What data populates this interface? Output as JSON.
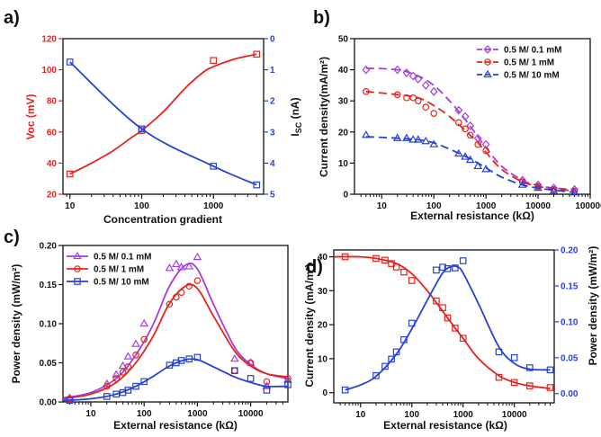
{
  "figure": {
    "panel_labels": [
      "a)",
      "b)",
      "c)",
      "d)"
    ]
  },
  "chart_data": [
    {
      "panel": "a)",
      "type": "line",
      "xlabel": "Concentration gradient",
      "ylabel_left": "Voc (mV)",
      "ylabel_right_main": "I",
      "ylabel_right_sub": "SC",
      "ylabel_right_unit": " (nA)",
      "xscale": "log",
      "xlim": [
        8,
        5000
      ],
      "xticks": [
        10,
        100,
        1000
      ],
      "xticklabels": [
        "10",
        "100",
        "1000"
      ],
      "ylim_left": [
        20,
        120
      ],
      "yticks_left": [
        20,
        40,
        60,
        80,
        100,
        120
      ],
      "ylim_right": [
        5,
        0
      ],
      "yticks_right": [
        0,
        1,
        2,
        3,
        4,
        5
      ],
      "left_axis_color": "#e8221b",
      "right_axis_color": "#2440d8",
      "series": [
        {
          "axis": "left",
          "color": "#e8221b",
          "marker": "square",
          "x": [
            10,
            100,
            1000,
            4000
          ],
          "y": [
            33,
            61,
            106,
            110
          ],
          "fit_x": [
            10,
            20,
            40,
            70,
            100,
            200,
            400,
            700,
            1000,
            2000,
            4000
          ],
          "fit_y": [
            33,
            40,
            48,
            56,
            61,
            73,
            88,
            98,
            102,
            107,
            110
          ]
        },
        {
          "axis": "right",
          "color": "#2440d8",
          "marker": "square",
          "x": [
            10,
            100,
            1000,
            4000
          ],
          "y": [
            0.75,
            2.9,
            4.1,
            4.7
          ],
          "fit_x": [
            10,
            100,
            1000,
            4000
          ],
          "fit_y": [
            0.75,
            2.9,
            4.1,
            4.7
          ]
        }
      ]
    },
    {
      "panel": "b)",
      "type": "scatter",
      "xlabel_main": "External resistance (k",
      "xlabel_symbol": "Ω",
      "xlabel_end": ")",
      "ylabel": "Current density(mA/m²)",
      "xscale": "log",
      "xlim": [
        3,
        100000
      ],
      "xticks": [
        10,
        100,
        1000,
        10000,
        100000
      ],
      "xticklabels": [
        "10",
        "100",
        "1000",
        "10000",
        "100000"
      ],
      "ylim": [
        0,
        50
      ],
      "yticks": [
        0,
        10,
        20,
        30,
        40,
        50
      ],
      "legend": "top-right",
      "series": [
        {
          "name": "0.5 M/ 0.1 mM",
          "color": "#a43de0",
          "marker": "diamond",
          "x": [
            5,
            20,
            30,
            40,
            50,
            70,
            100,
            300,
            400,
            500,
            700,
            1000,
            5000,
            10000,
            20000,
            50000
          ],
          "y": [
            40,
            40,
            39,
            38,
            37,
            35,
            33,
            27,
            25,
            22,
            18,
            16,
            4.5,
            3,
            2,
            1.5
          ],
          "fit_x": [
            5,
            20,
            50,
            100,
            200,
            400,
            700,
            1000,
            2000,
            5000,
            10000,
            20000,
            50000
          ],
          "fit_y": [
            40.5,
            40,
            38,
            35,
            30,
            24,
            18.5,
            15,
            9,
            4.5,
            2.8,
            2,
            1.5
          ]
        },
        {
          "name": "0.5 M/ 1 mM",
          "color": "#e8221b",
          "marker": "circle",
          "x": [
            5,
            20,
            30,
            40,
            50,
            70,
            100,
            300,
            400,
            500,
            700,
            1000,
            5000,
            10000,
            20000,
            50000
          ],
          "y": [
            33,
            32,
            31,
            31,
            30,
            28,
            26,
            23,
            21,
            19,
            16,
            14,
            4,
            2.5,
            1.5,
            1
          ],
          "fit_x": [
            5,
            20,
            50,
            100,
            200,
            400,
            700,
            1000,
            2000,
            5000,
            10000,
            20000,
            50000
          ],
          "fit_y": [
            33,
            32,
            31,
            28.5,
            25,
            20.5,
            16.5,
            13.5,
            8,
            4,
            2.5,
            1.8,
            1
          ]
        },
        {
          "name": "0.5 M/ 10 mM",
          "color": "#2440d8",
          "marker": "triangle",
          "x": [
            5,
            20,
            30,
            40,
            50,
            70,
            100,
            300,
            400,
            500,
            700,
            1000,
            5000,
            10000,
            20000,
            50000
          ],
          "y": [
            19,
            18,
            18,
            17.5,
            17.5,
            17,
            16,
            13,
            12,
            11,
            9,
            8,
            3,
            2,
            1,
            0.5
          ],
          "fit_x": [
            5,
            20,
            50,
            100,
            200,
            400,
            700,
            1000,
            2000,
            5000,
            10000,
            20000,
            50000
          ],
          "fit_y": [
            18.5,
            18,
            17.5,
            16.5,
            14.5,
            12.2,
            10,
            8.5,
            5.5,
            3,
            2,
            1.3,
            0.6
          ]
        }
      ]
    },
    {
      "panel": "c)",
      "type": "scatter",
      "xlabel_main": "External resistance (k",
      "xlabel_symbol": "Ω",
      "xlabel_end": ")",
      "ylabel": "Power density (mW/m²)",
      "xscale": "log",
      "xlim": [
        3,
        50000
      ],
      "xticks": [
        10,
        100,
        1000,
        10000
      ],
      "xticklabels": [
        "10",
        "100",
        "1000",
        "10000"
      ],
      "ylim": [
        0,
        0.2
      ],
      "yticks": [
        0,
        0.05,
        0.1,
        0.15,
        0.2
      ],
      "yticklabels": [
        "0.00",
        "0.05",
        "0.10",
        "0.15",
        "0.20"
      ],
      "legend": "top-left",
      "series": [
        {
          "name": "0.5 M/ 0.1 mM",
          "color": "#a43de0",
          "marker": "triangle",
          "x": [
            4,
            20,
            30,
            40,
            50,
            70,
            100,
            300,
            400,
            500,
            700,
            1000,
            5000,
            10000,
            20000,
            50000
          ],
          "y": [
            0.005,
            0.023,
            0.035,
            0.046,
            0.058,
            0.074,
            0.1,
            0.171,
            0.176,
            0.172,
            0.173,
            0.185,
            0.055,
            0.05,
            0.02,
            0.028
          ],
          "fit_x": [
            3,
            10,
            30,
            70,
            150,
            300,
            600,
            1000,
            2000,
            5000,
            10000,
            20000,
            50000
          ],
          "fit_y": [
            0.005,
            0.012,
            0.03,
            0.06,
            0.1,
            0.148,
            0.175,
            0.17,
            0.125,
            0.07,
            0.048,
            0.036,
            0.03
          ]
        },
        {
          "name": "0.5 M/ 1 mM",
          "color": "#e8221b",
          "marker": "circle",
          "x": [
            4,
            20,
            30,
            40,
            50,
            70,
            100,
            300,
            400,
            500,
            700,
            1000,
            5000,
            10000,
            20000,
            50000
          ],
          "y": [
            0.004,
            0.02,
            0.03,
            0.038,
            0.045,
            0.06,
            0.08,
            0.125,
            0.134,
            0.14,
            0.148,
            0.155,
            0.04,
            0.05,
            0.026,
            0.03
          ],
          "fit_x": [
            3,
            10,
            30,
            70,
            150,
            300,
            600,
            1000,
            2000,
            5000,
            10000,
            20000,
            50000
          ],
          "fit_y": [
            0.004,
            0.01,
            0.025,
            0.05,
            0.085,
            0.126,
            0.148,
            0.145,
            0.11,
            0.065,
            0.046,
            0.036,
            0.032
          ]
        },
        {
          "name": "0.5 M/ 10 mM",
          "color": "#2440d8",
          "marker": "square",
          "x": [
            4,
            20,
            30,
            40,
            50,
            70,
            100,
            300,
            400,
            500,
            700,
            1000,
            5000,
            10000,
            20000,
            50000
          ],
          "y": [
            0.002,
            0.007,
            0.01,
            0.012,
            0.015,
            0.02,
            0.026,
            0.047,
            0.05,
            0.053,
            0.055,
            0.057,
            0.04,
            0.03,
            0.015,
            0.022
          ],
          "fit_x": [
            3,
            10,
            30,
            70,
            150,
            300,
            600,
            1000,
            2000,
            5000,
            10000,
            20000,
            50000
          ],
          "fit_y": [
            0.002,
            0.004,
            0.01,
            0.02,
            0.033,
            0.046,
            0.054,
            0.054,
            0.045,
            0.032,
            0.025,
            0.02,
            0.02
          ]
        }
      ]
    },
    {
      "panel": "d)",
      "type": "line",
      "xlabel_main": "External resistance (k",
      "xlabel_symbol": "Ω",
      "xlabel_end": ")",
      "ylabel_left": "Current density (mA/m²)",
      "ylabel_right": "Power density (mW/m²)",
      "xscale": "log",
      "xlim": [
        3,
        60000
      ],
      "xticks": [
        10,
        100,
        1000,
        10000
      ],
      "xticklabels": [
        "10",
        "100",
        "1000",
        "10000"
      ],
      "ylim_left": [
        -3,
        42
      ],
      "yticks_left": [
        0,
        10,
        20,
        30,
        40
      ],
      "ylim_right": [
        -0.0129,
        0.2
      ],
      "yticks_right": [
        0,
        0.05,
        0.1,
        0.15,
        0.2
      ],
      "yticklabels_right": [
        "0.00",
        "0.05",
        "0.10",
        "0.15",
        "0.20"
      ],
      "left_axis_color": "#111111",
      "right_axis_color": "#2440d8",
      "series": [
        {
          "axis": "left",
          "color": "#e8221b",
          "marker": "square",
          "x": [
            5,
            20,
            30,
            40,
            50,
            70,
            100,
            300,
            400,
            500,
            700,
            1000,
            5000,
            10000,
            20000,
            50000
          ],
          "y": [
            40,
            39.5,
            39,
            38,
            37,
            35.5,
            33,
            27,
            25,
            22,
            19,
            16,
            4.5,
            3,
            2,
            1.5
          ],
          "fit_x": [
            3,
            10,
            20,
            50,
            100,
            200,
            400,
            700,
            1000,
            2000,
            5000,
            10000,
            20000,
            50000
          ],
          "fit_y": [
            40,
            40,
            39.5,
            38,
            35,
            30,
            24,
            19,
            16,
            10,
            5,
            3,
            2,
            1.2
          ]
        },
        {
          "axis": "right",
          "color": "#2440d8",
          "marker": "square",
          "x": [
            5,
            20,
            30,
            40,
            50,
            70,
            100,
            300,
            400,
            500,
            700,
            1000,
            5000,
            10000,
            20000,
            50000
          ],
          "y": [
            0.005,
            0.025,
            0.038,
            0.048,
            0.058,
            0.075,
            0.098,
            0.172,
            0.176,
            0.174,
            0.175,
            0.185,
            0.058,
            0.05,
            0.036,
            0.033
          ],
          "fit_x": [
            5,
            10,
            20,
            50,
            100,
            200,
            400,
            600,
            800,
            1000,
            2000,
            5000,
            10000,
            20000,
            50000
          ],
          "fit_y": [
            0.005,
            0.012,
            0.024,
            0.055,
            0.09,
            0.13,
            0.168,
            0.177,
            0.176,
            0.168,
            0.125,
            0.065,
            0.042,
            0.034,
            0.033
          ]
        }
      ]
    }
  ]
}
